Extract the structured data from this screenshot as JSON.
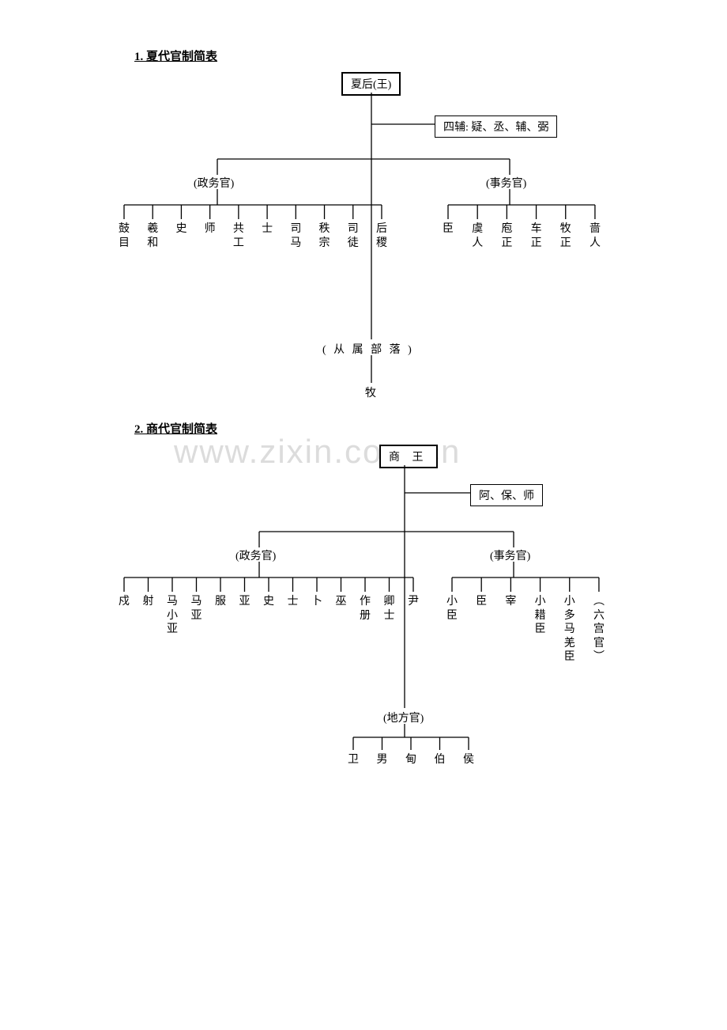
{
  "page": {
    "background": "#ffffff",
    "text_color": "#000000",
    "line_color": "#000000",
    "font_family": "SimSun",
    "watermark_text": "www.zixin.com.cn",
    "watermark_color": "#dcdcdc"
  },
  "diagram1": {
    "title": "1. 夏代官制简表",
    "root": "夏后(王)",
    "aux_box": "四辅: 疑、丞、辅、弼",
    "branches": {
      "left": {
        "label": "(政务官)",
        "leaves": [
          "鼓目",
          "羲和",
          "史",
          "师",
          "共工",
          "士",
          "司马",
          "秩宗",
          "司徒",
          "后稷"
        ]
      },
      "right": {
        "label": "(事务官)",
        "leaves": [
          "臣",
          "虞人",
          "庖正",
          "车正",
          "牧正",
          "啬人"
        ]
      },
      "bottom": {
        "label": "( 从 属 部 落 )",
        "leaves": [
          "牧"
        ]
      }
    }
  },
  "diagram2": {
    "title": "2. 商代官制简表",
    "root": "商 王",
    "aux_box": "阿、保、师",
    "branches": {
      "left": {
        "label": "(政务官)",
        "leaves": [
          "戍",
          "射",
          "马小亚",
          "马亚",
          "服",
          "亚",
          "史",
          "士",
          "卜",
          "巫",
          "作册",
          "卿士",
          "尹"
        ]
      },
      "right": {
        "label": "(事务官)",
        "leaves": [
          "小臣",
          "臣",
          "宰",
          "小耤臣",
          "小多马羌臣",
          "︵六宫官︶"
        ]
      },
      "bottom": {
        "label": "(地方官)",
        "leaves": [
          "卫",
          "男",
          "甸",
          "伯",
          "侯"
        ]
      }
    }
  }
}
